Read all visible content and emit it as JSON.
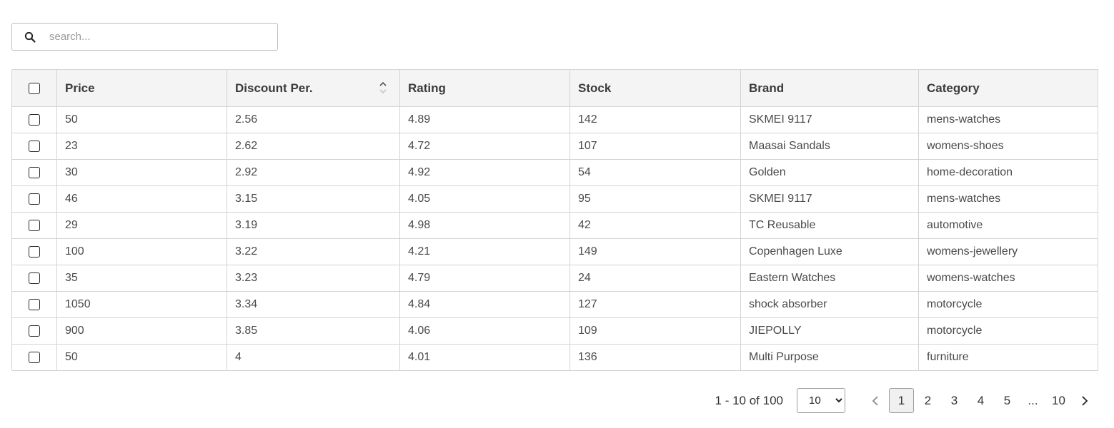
{
  "search": {
    "placeholder": "search..."
  },
  "table": {
    "columns": [
      "Price",
      "Discount Per.",
      "Rating",
      "Stock",
      "Brand",
      "Category"
    ],
    "rows": [
      [
        "50",
        "2.56",
        "4.89",
        "142",
        "SKMEI 9117",
        "mens-watches"
      ],
      [
        "23",
        "2.62",
        "4.72",
        "107",
        "Maasai Sandals",
        "womens-shoes"
      ],
      [
        "30",
        "2.92",
        "4.92",
        "54",
        "Golden",
        "home-decoration"
      ],
      [
        "46",
        "3.15",
        "4.05",
        "95",
        "SKMEI 9117",
        "mens-watches"
      ],
      [
        "29",
        "3.19",
        "4.98",
        "42",
        "TC Reusable",
        "automotive"
      ],
      [
        "100",
        "3.22",
        "4.21",
        "149",
        "Copenhagen Luxe",
        "womens-jewellery"
      ],
      [
        "35",
        "3.23",
        "4.79",
        "24",
        "Eastern Watches",
        "womens-watches"
      ],
      [
        "1050",
        "3.34",
        "4.84",
        "127",
        "shock absorber",
        "motorcycle"
      ],
      [
        "900",
        "3.85",
        "4.06",
        "109",
        "JIEPOLLY",
        "motorcycle"
      ],
      [
        "50",
        "4",
        "4.01",
        "136",
        "Multi Purpose",
        "furniture"
      ]
    ]
  },
  "pagination": {
    "range_text": "1 - 10 of 100",
    "page_size": "10",
    "page_size_options": [
      "10"
    ],
    "pages": [
      "1",
      "2",
      "3",
      "4",
      "5"
    ],
    "ellipsis": "...",
    "last_page": "10",
    "current_page": "1"
  }
}
